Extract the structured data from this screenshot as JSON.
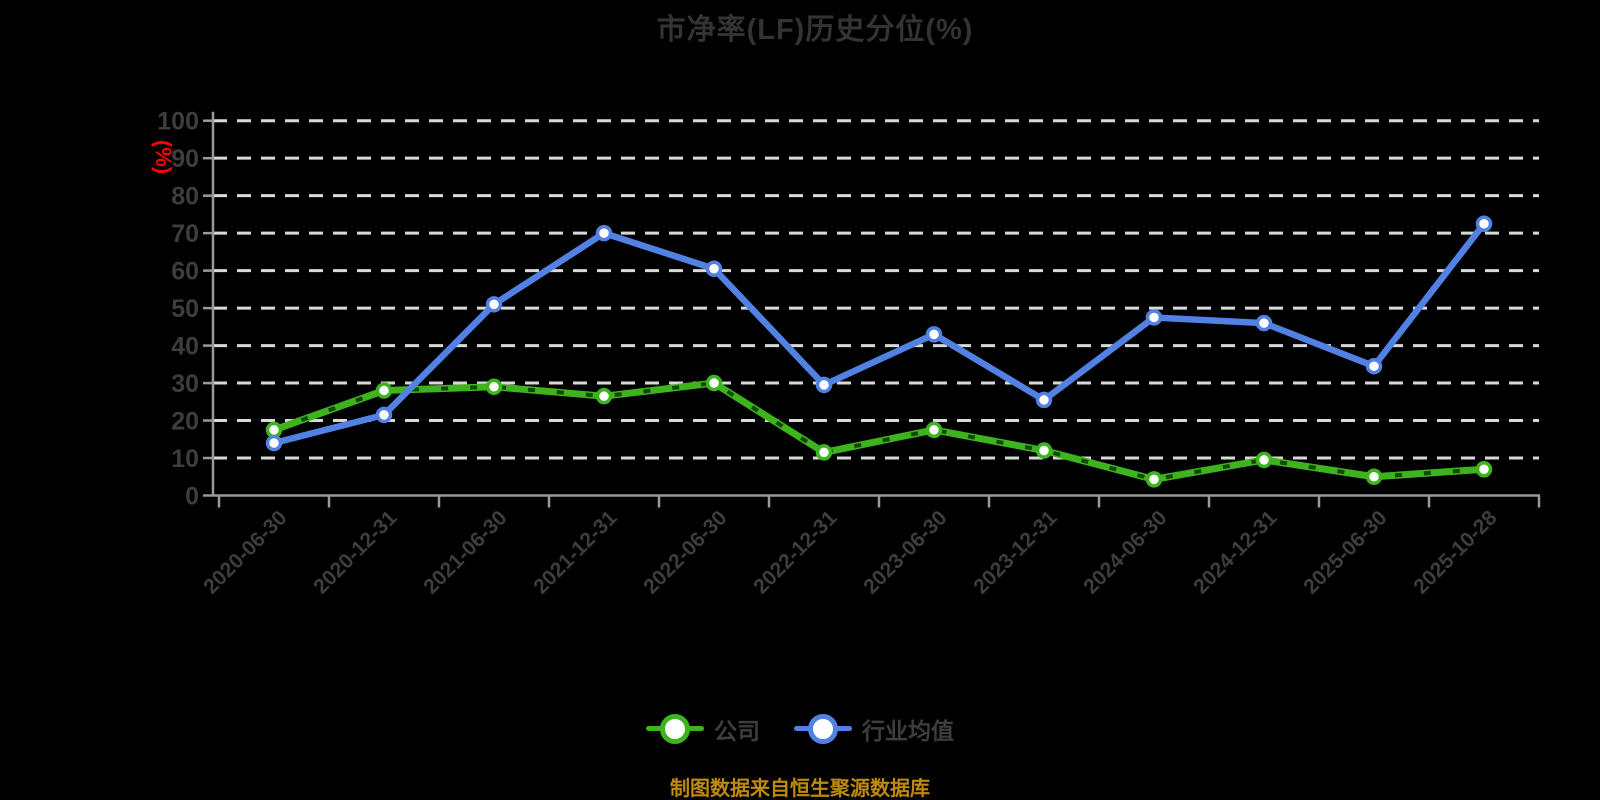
{
  "chart": {
    "title": "市净率(LF)历史分位(%)",
    "y_unit": "(%)",
    "source": "制图数据来自恒生聚源数据库",
    "colors": {
      "background": "#000000",
      "title": "#333333",
      "unit": "#ff0000",
      "grid": "#d9d9d9",
      "axis": "#999999",
      "tick_label": "#3d3d3d",
      "legend_text": "#3d3d3d",
      "source": "#bd8a0e",
      "company": "#3db41e",
      "company_dash": "#0d3302",
      "industry": "#5181e2",
      "marker_fill": "#ffffff"
    }
  },
  "chart_data": {
    "type": "line",
    "title": "市净率(LF)历史分位(%)",
    "categories": [
      "2020-06-30",
      "2020-12-31",
      "2021-06-30",
      "2021-12-31",
      "2022-06-30",
      "2022-12-31",
      "2023-06-30",
      "2023-12-31",
      "2024-06-30",
      "2024-12-31",
      "2025-06-30",
      "2025-10-28"
    ],
    "series": [
      {
        "id": "company",
        "name": "公司",
        "color": "#3db41e",
        "values": [
          17.5,
          28,
          29,
          26.5,
          30,
          11.5,
          17.5,
          12,
          4.3,
          9.5,
          5,
          7
        ]
      },
      {
        "id": "industry",
        "name": "行业均值",
        "color": "#5181e2",
        "values": [
          14,
          21.5,
          51,
          70,
          60.5,
          29.5,
          43,
          25.5,
          47.5,
          46,
          34.5,
          72.5
        ]
      }
    ],
    "xlabel": "",
    "ylabel": "(%)",
    "ylim": [
      0,
      100
    ],
    "ytick_step": 10,
    "grid": true,
    "grid_style": "dashed",
    "legend_position": "bottom",
    "source_note": "制图数据来自恒生聚源数据库"
  }
}
